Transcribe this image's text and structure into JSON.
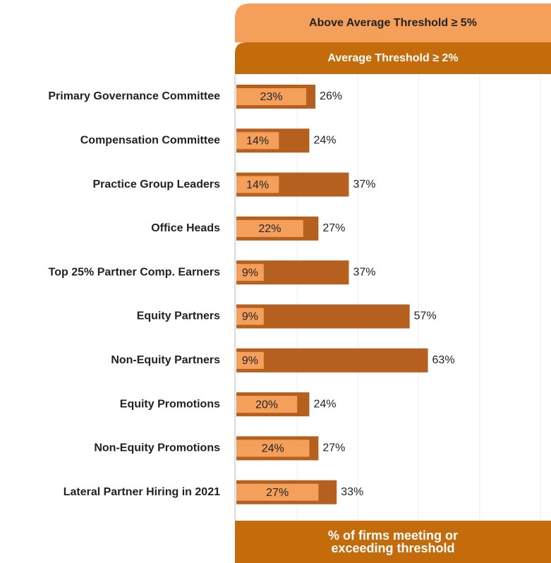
{
  "chart_data": {
    "type": "bar",
    "orientation": "horizontal",
    "categories": [
      "Primary Governance Committee",
      "Compensation Committee",
      "Practice Group Leaders",
      "Office Heads",
      "Top 25% Partner Comp. Earners",
      "Equity Partners",
      "Non-Equity Partners",
      "Equity Promotions",
      "Non-Equity Promotions",
      "Lateral Partner Hiring in 2021"
    ],
    "series": [
      {
        "name": "Average Threshold ≥ 2%",
        "color": "#b5601e",
        "values": [
          26,
          24,
          37,
          27,
          37,
          57,
          63,
          24,
          27,
          33
        ],
        "value_labels": [
          "26%",
          "24%",
          "37%",
          "27%",
          "37%",
          "57%",
          "63%",
          "24%",
          "27%",
          "33%"
        ]
      },
      {
        "name": "Above Average Threshold ≥ 5%",
        "color": "#f4a05a",
        "values": [
          23,
          14,
          14,
          22,
          9,
          9,
          9,
          20,
          24,
          27
        ],
        "value_labels": [
          "23%",
          "14%",
          "14%",
          "22%",
          "9%",
          "9%",
          "9%",
          "20%",
          "24%",
          "27%"
        ]
      }
    ],
    "xlim": [
      0,
      100
    ],
    "xticks": [
      0,
      20,
      40,
      60,
      80,
      100
    ],
    "grid": true,
    "xlabel": "% of firms meeting or exceeding threshold"
  }
}
